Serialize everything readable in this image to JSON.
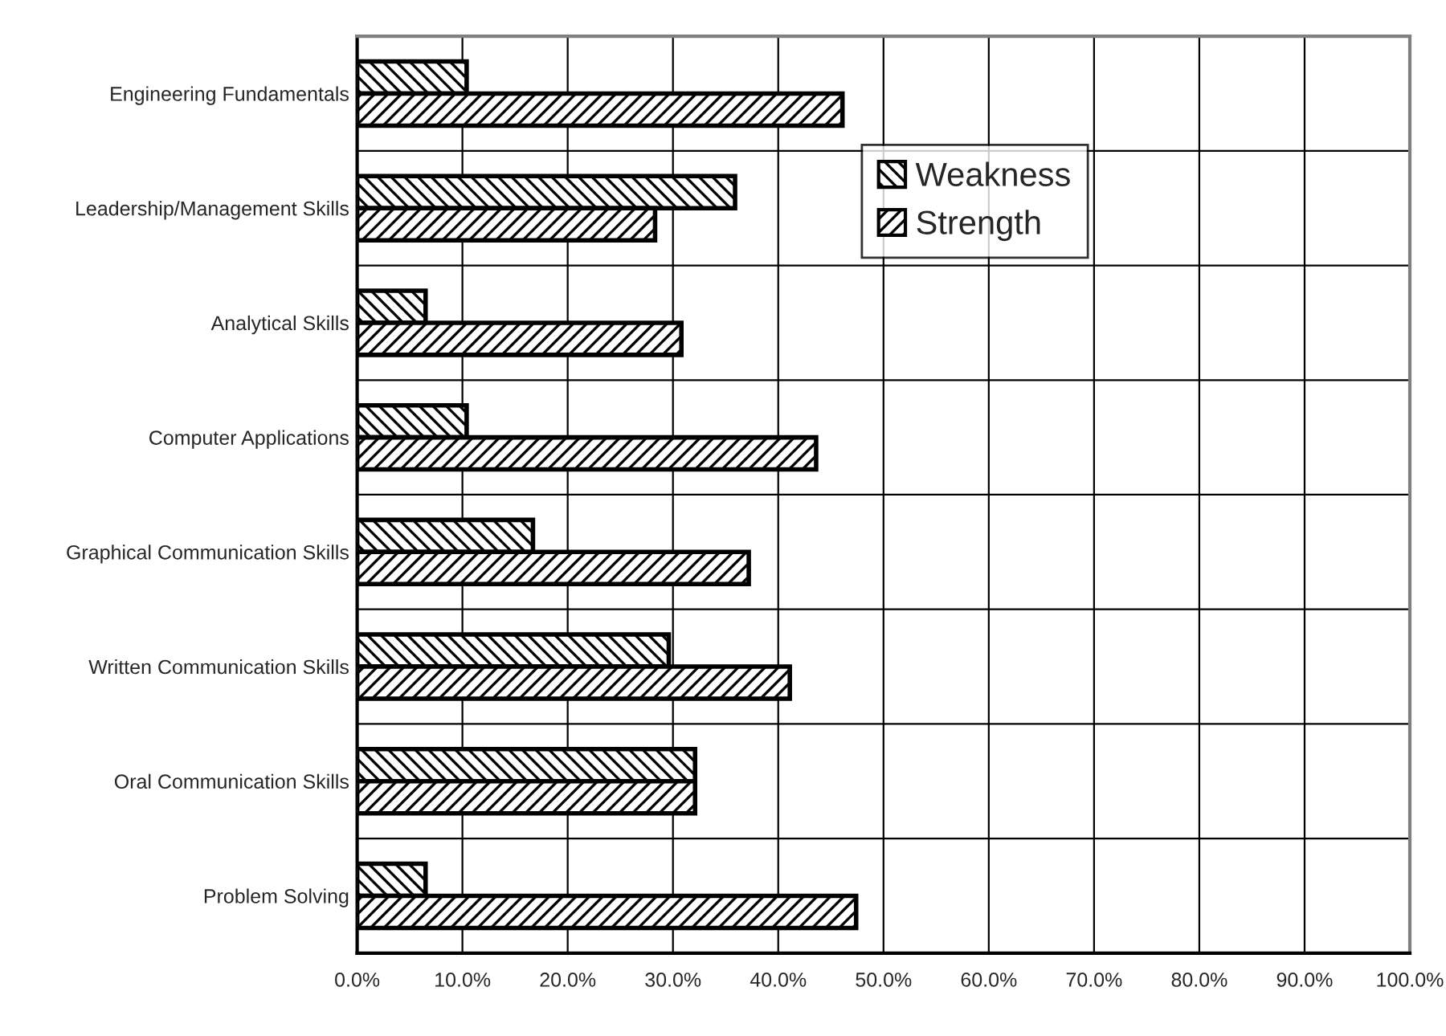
{
  "chart_data": {
    "type": "bar",
    "orientation": "horizontal",
    "categories": [
      "Engineering Fundamentals",
      "Leadership/Management Skills",
      "Analytical Skills",
      "Computer Applications",
      "Graphical Communication Skills",
      "Written Communication Skills",
      "Oral Communication Skills",
      "Problem Solving"
    ],
    "series": [
      {
        "name": "Weakness",
        "color": "#000000",
        "values": [
          10.4,
          35.9,
          6.5,
          10.4,
          16.7,
          29.6,
          32.1,
          6.5
        ]
      },
      {
        "name": "Strength",
        "color": "#000000",
        "values": [
          46.1,
          28.3,
          30.8,
          43.6,
          37.2,
          41.1,
          32.1,
          47.4
        ]
      }
    ],
    "xlim": [
      0,
      100
    ],
    "xticks": [
      {
        "value": 0,
        "label": "0.0%"
      },
      {
        "value": 10,
        "label": "10.0%"
      },
      {
        "value": 20,
        "label": "20.0%"
      },
      {
        "value": 30,
        "label": "30.0%"
      },
      {
        "value": 40,
        "label": "40.0%"
      },
      {
        "value": 50,
        "label": "50.0%"
      },
      {
        "value": 60,
        "label": "60.0%"
      },
      {
        "value": 70,
        "label": "70.0%"
      },
      {
        "value": 80,
        "label": "80.0%"
      },
      {
        "value": 90,
        "label": "90.0%"
      },
      {
        "value": 100,
        "label": "100.0%"
      }
    ],
    "grid": true,
    "legend": "right"
  }
}
